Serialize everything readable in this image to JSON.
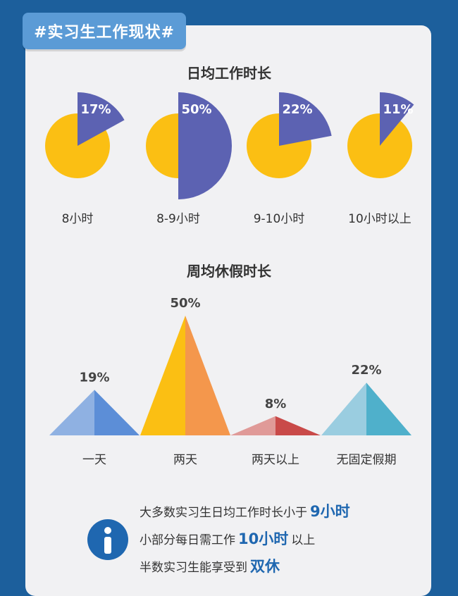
{
  "header": {
    "tag": "#实习生工作现状#"
  },
  "colors": {
    "background": "#1c5f9c",
    "card": "#f1f1f3",
    "tag": "#5b9bd6",
    "pie_base": "#fbbf13",
    "pie_slice": "#5c62b2",
    "accent": "#1f67b0"
  },
  "chart_data": [
    {
      "type": "pie",
      "title": "日均工作时长",
      "categories": [
        "8小时",
        "8-9小时",
        "9-10小时",
        "10小时以上"
      ],
      "values": [
        17,
        50,
        22,
        11
      ],
      "value_labels": [
        "17%",
        "50%",
        "22%",
        "11%"
      ]
    },
    {
      "type": "area",
      "title": "周均休假时长",
      "categories": [
        "一天",
        "两天",
        "两天以上",
        "无固定假期"
      ],
      "values": [
        19,
        50,
        8,
        22
      ],
      "value_labels": [
        "19%",
        "50%",
        "8%",
        "22%"
      ],
      "colors": [
        [
          "#8fb1e2",
          "#5c8ed7"
        ],
        [
          "#fbbf13",
          "#f4974c"
        ],
        [
          "#e09a98",
          "#c94a49"
        ],
        [
          "#9acde0",
          "#4fb0cb"
        ]
      ]
    }
  ],
  "info": {
    "icon": "info-icon",
    "lines": [
      {
        "before": "大多数实习生日均工作时长小于",
        "highlight": "9小时",
        "after": ""
      },
      {
        "before": "小部分每日需工作",
        "highlight": "10小时",
        "after": "以上"
      },
      {
        "before": "半数实习生能享受到",
        "highlight": "双休",
        "after": ""
      }
    ]
  }
}
